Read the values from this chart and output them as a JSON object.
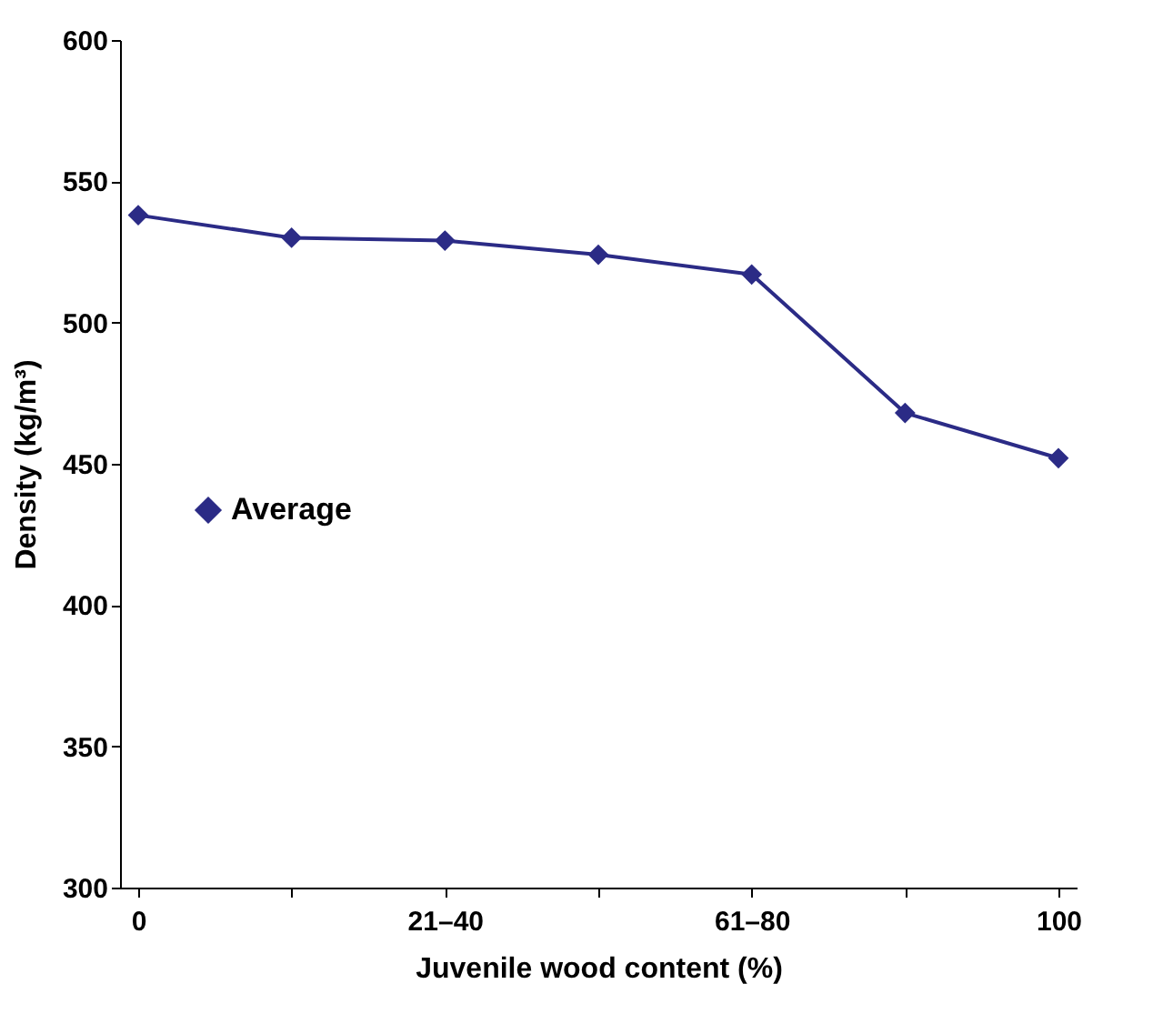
{
  "chart_data": {
    "type": "line",
    "xlabel": "Juvenile wood content (%)",
    "ylabel": "Density (kg/m³)",
    "categories": [
      "0",
      null,
      "21–40",
      null,
      "61–80",
      null,
      "100"
    ],
    "series": [
      {
        "name": "Average",
        "color": "#2b2b86",
        "values": [
          538,
          530,
          529,
          524,
          517,
          468,
          452
        ]
      }
    ],
    "ylim": [
      300,
      600
    ],
    "yticks": [
      300,
      350,
      400,
      450,
      500,
      550,
      600
    ],
    "grid": false,
    "legend": "left",
    "marker": "diamond",
    "line_style": "solid"
  }
}
